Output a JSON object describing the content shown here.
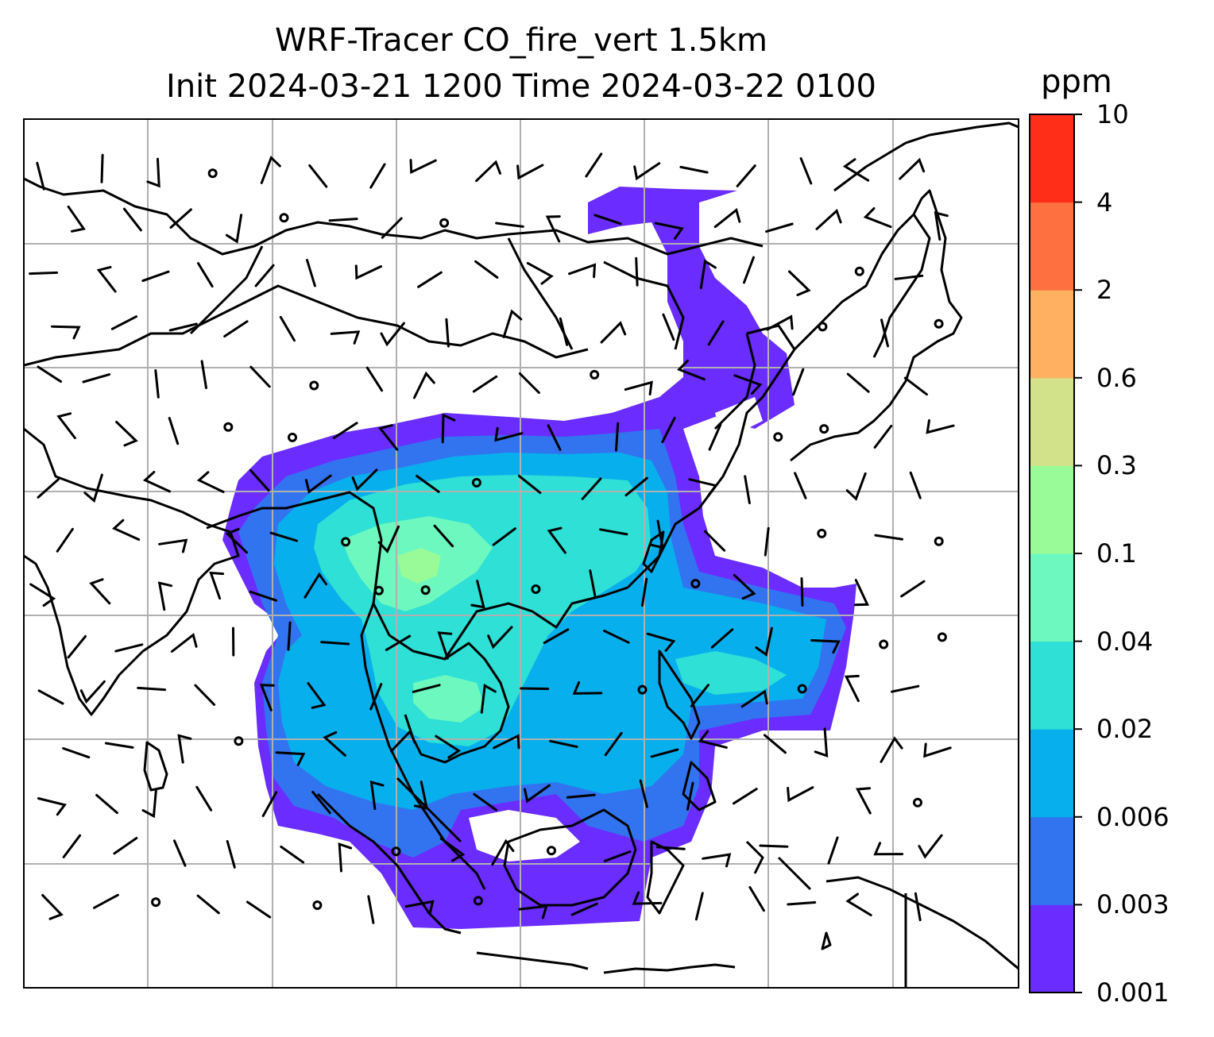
{
  "title": {
    "line1": "WRF-Tracer CO_fire_vert 1.5km",
    "line2": "Init 2024-03-21 1200 Time 2024-03-22 0100"
  },
  "colorbar": {
    "unit": "ppm",
    "ticks": [
      "0.001",
      "0.003",
      "0.006",
      "0.02",
      "0.04",
      "0.1",
      "0.3",
      "0.6",
      "2",
      "4",
      "10"
    ],
    "colors": [
      "#6a2cff",
      "#3274f0",
      "#07b0ec",
      "#2ee0d6",
      "#6cf8be",
      "#98fb98",
      "#d2e28a",
      "#ffb060",
      "#ff7040",
      "#ff2e18"
    ]
  },
  "map": {
    "grid": true,
    "colors": {
      "level_1": "#6a2cff",
      "level_2": "#3274f0",
      "level_3": "#07b0ec",
      "level_4": "#2ee0d6",
      "level_5": "#6cf8be",
      "level_6": "#98fb98",
      "coastline": "#000000",
      "gridline": "#b0b0b0"
    }
  }
}
